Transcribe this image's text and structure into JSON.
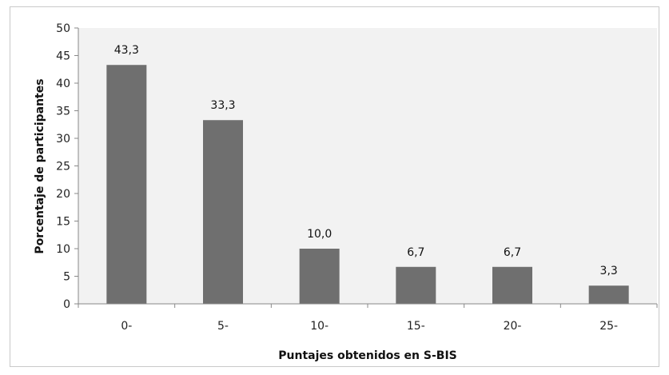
{
  "chart_data": {
    "type": "bar",
    "title": "",
    "xlabel": "Puntajes obtenidos en S-BIS",
    "ylabel": "Porcentaje de participantes",
    "categories": [
      "0-",
      "5-",
      "10-",
      "15-",
      "20-",
      "25-"
    ],
    "values": [
      43.3,
      33.3,
      10.0,
      6.7,
      6.7,
      3.3
    ],
    "value_labels": [
      "43,3",
      "33,3",
      "10,0",
      "6,7",
      "6,7",
      "3,3"
    ],
    "yticks": [
      "0",
      "5",
      "10",
      "15",
      "20",
      "25",
      "30",
      "35",
      "40",
      "45",
      "50"
    ],
    "ylim": [
      0,
      50
    ],
    "grid": false,
    "legend": "none",
    "colors": {
      "bar": "#6f6f6f",
      "plot_bg": "#f2f2f2",
      "axis": "#888888"
    }
  }
}
